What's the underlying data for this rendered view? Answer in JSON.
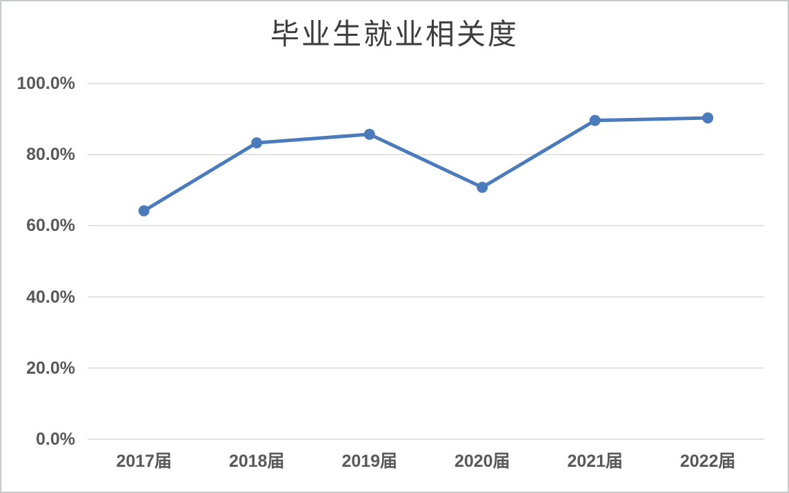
{
  "window": {
    "background": "#ffffff",
    "border_color": "#c6c9cc"
  },
  "chart_data": {
    "type": "line",
    "title": "毕业生就业相关度",
    "categories": [
      "2017届",
      "2018届",
      "2019届",
      "2020届",
      "2021届",
      "2022届"
    ],
    "values": [
      64.2,
      83.3,
      85.7,
      70.8,
      89.6,
      90.3
    ],
    "unit": "%",
    "ylim": [
      0,
      100
    ],
    "y_ticks": [
      {
        "value": 100,
        "label": "100.0%"
      },
      {
        "value": 80,
        "label": "80.0%"
      },
      {
        "value": 60,
        "label": "60.0%"
      },
      {
        "value": 40,
        "label": "40.0%"
      },
      {
        "value": 20,
        "label": "20.0%"
      },
      {
        "value": 0,
        "label": "0.0%"
      }
    ],
    "grid": true,
    "legend": "none",
    "marker": "circle",
    "colors": {
      "line": "#4b7bbb",
      "marker": "#4b7bbb",
      "gridline": "#d9d9d9",
      "title_text": "#3d3d3d",
      "axis_label_text": "#595959"
    }
  }
}
